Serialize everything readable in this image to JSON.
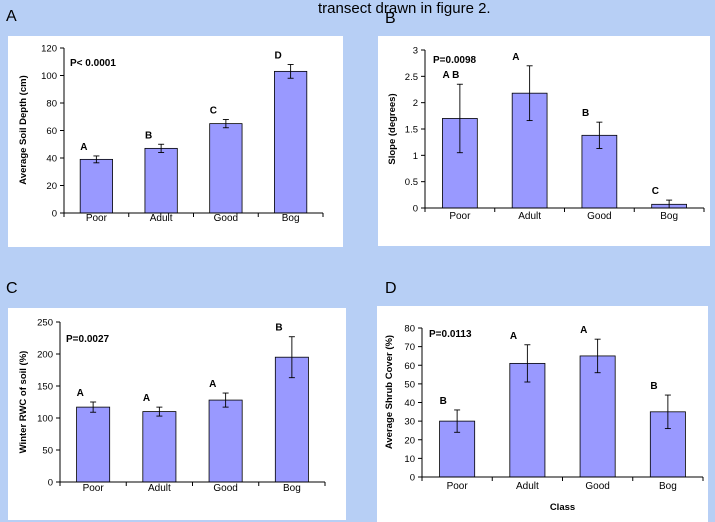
{
  "caption": "transect drawn in figure 2.",
  "panels": [
    {
      "letter": "A"
    },
    {
      "letter": "B"
    },
    {
      "letter": "C"
    },
    {
      "letter": "D"
    }
  ],
  "chart_data": [
    {
      "type": "bar",
      "title": "",
      "annotation": "P< 0.0001",
      "categories": [
        "Poor",
        "Adult",
        "Good",
        "Bog"
      ],
      "values": [
        39,
        47,
        65,
        103
      ],
      "errors": [
        2.5,
        3,
        3,
        5
      ],
      "letters": [
        "A",
        "B",
        "C",
        "D"
      ],
      "xlabel": "",
      "ylabel": "Average Soil Depth (cm)",
      "ylim": [
        0,
        120
      ],
      "yticks": [
        "0",
        "20",
        "40",
        "60",
        "80",
        "100",
        "120"
      ],
      "bar_color": "#9999ff",
      "grid": false
    },
    {
      "type": "bar",
      "title": "",
      "annotation": "P=0.0098",
      "categories": [
        "Poor",
        "Adult",
        "Good",
        "Bog"
      ],
      "values": [
        1.7,
        2.18,
        1.38,
        0.07
      ],
      "errors": [
        0.65,
        0.52,
        0.25,
        0.08
      ],
      "letters": [
        "A B",
        "A",
        "B",
        "C"
      ],
      "xlabel": "",
      "ylabel": "Slope (degrees)",
      "ylim": [
        0,
        3
      ],
      "yticks": [
        "0",
        "0.5",
        "1",
        "1.5",
        "2",
        "2.5",
        "3"
      ],
      "bar_color": "#9999ff",
      "grid": false
    },
    {
      "type": "bar",
      "title": "",
      "annotation": "P=0.0027",
      "categories": [
        "Poor",
        "Adult",
        "Good",
        "Bog"
      ],
      "values": [
        117,
        110,
        128,
        195
      ],
      "errors": [
        8,
        7,
        11,
        32
      ],
      "letters": [
        "A",
        "A",
        "A",
        "B"
      ],
      "xlabel": "",
      "ylabel": "Winter RWC of soil (%)",
      "ylim": [
        0,
        250
      ],
      "yticks": [
        "0",
        "50",
        "100",
        "150",
        "200",
        "250"
      ],
      "bar_color": "#9999ff",
      "grid": false
    },
    {
      "type": "bar",
      "title": "",
      "annotation": "P=0.0113",
      "categories": [
        "Poor",
        "Adult",
        "Good",
        "Bog"
      ],
      "values": [
        30,
        61,
        65,
        35
      ],
      "errors": [
        6,
        10,
        9,
        9
      ],
      "letters": [
        "B",
        "A",
        "A",
        "B"
      ],
      "xlabel": "Class",
      "ylabel": "Average Shrub Cover (%)",
      "ylim": [
        0,
        80
      ],
      "yticks": [
        "0",
        "10",
        "20",
        "30",
        "40",
        "50",
        "60",
        "70",
        "80"
      ],
      "bar_color": "#9999ff",
      "grid": false
    }
  ]
}
